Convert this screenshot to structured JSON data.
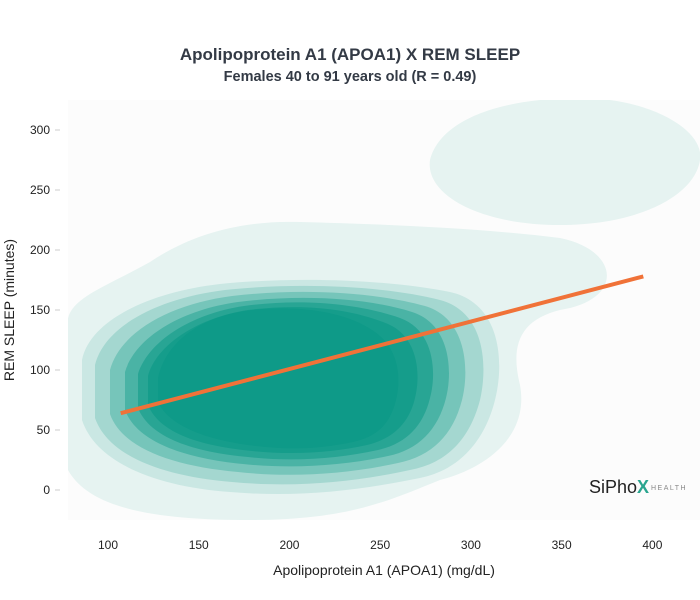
{
  "chart_data": {
    "type": "scatter",
    "title": "Apolipoprotein A1 (APOA1) X REM SLEEP",
    "subtitle": "Females 40 to 91 years old (R = 0.49)",
    "xlabel": "Apolipoprotein A1 (APOA1) (mg/dL)",
    "ylabel": "REM SLEEP (minutes)",
    "xlim": [
      75,
      415
    ],
    "ylim": [
      -25,
      325
    ],
    "xticks": [
      100,
      150,
      200,
      250,
      300,
      350,
      400
    ],
    "yticks": [
      0,
      50,
      100,
      150,
      200,
      250,
      300
    ],
    "grid": false,
    "density": {
      "levels": 9,
      "color": "#0e9a88",
      "background_color": "#fcfcfc"
    },
    "regression_line": {
      "color": "#f07238",
      "x": [
        107,
        395
      ],
      "y": [
        64,
        178
      ]
    }
  },
  "logo": {
    "name": "SiPhox Health",
    "text_main": "SiPho",
    "text_x": "X",
    "text_sub": "HEALTH",
    "colors": {
      "main": "#222222",
      "x_left": "#2aa58f",
      "x_right": "#f07238",
      "sub": "#888888"
    }
  }
}
